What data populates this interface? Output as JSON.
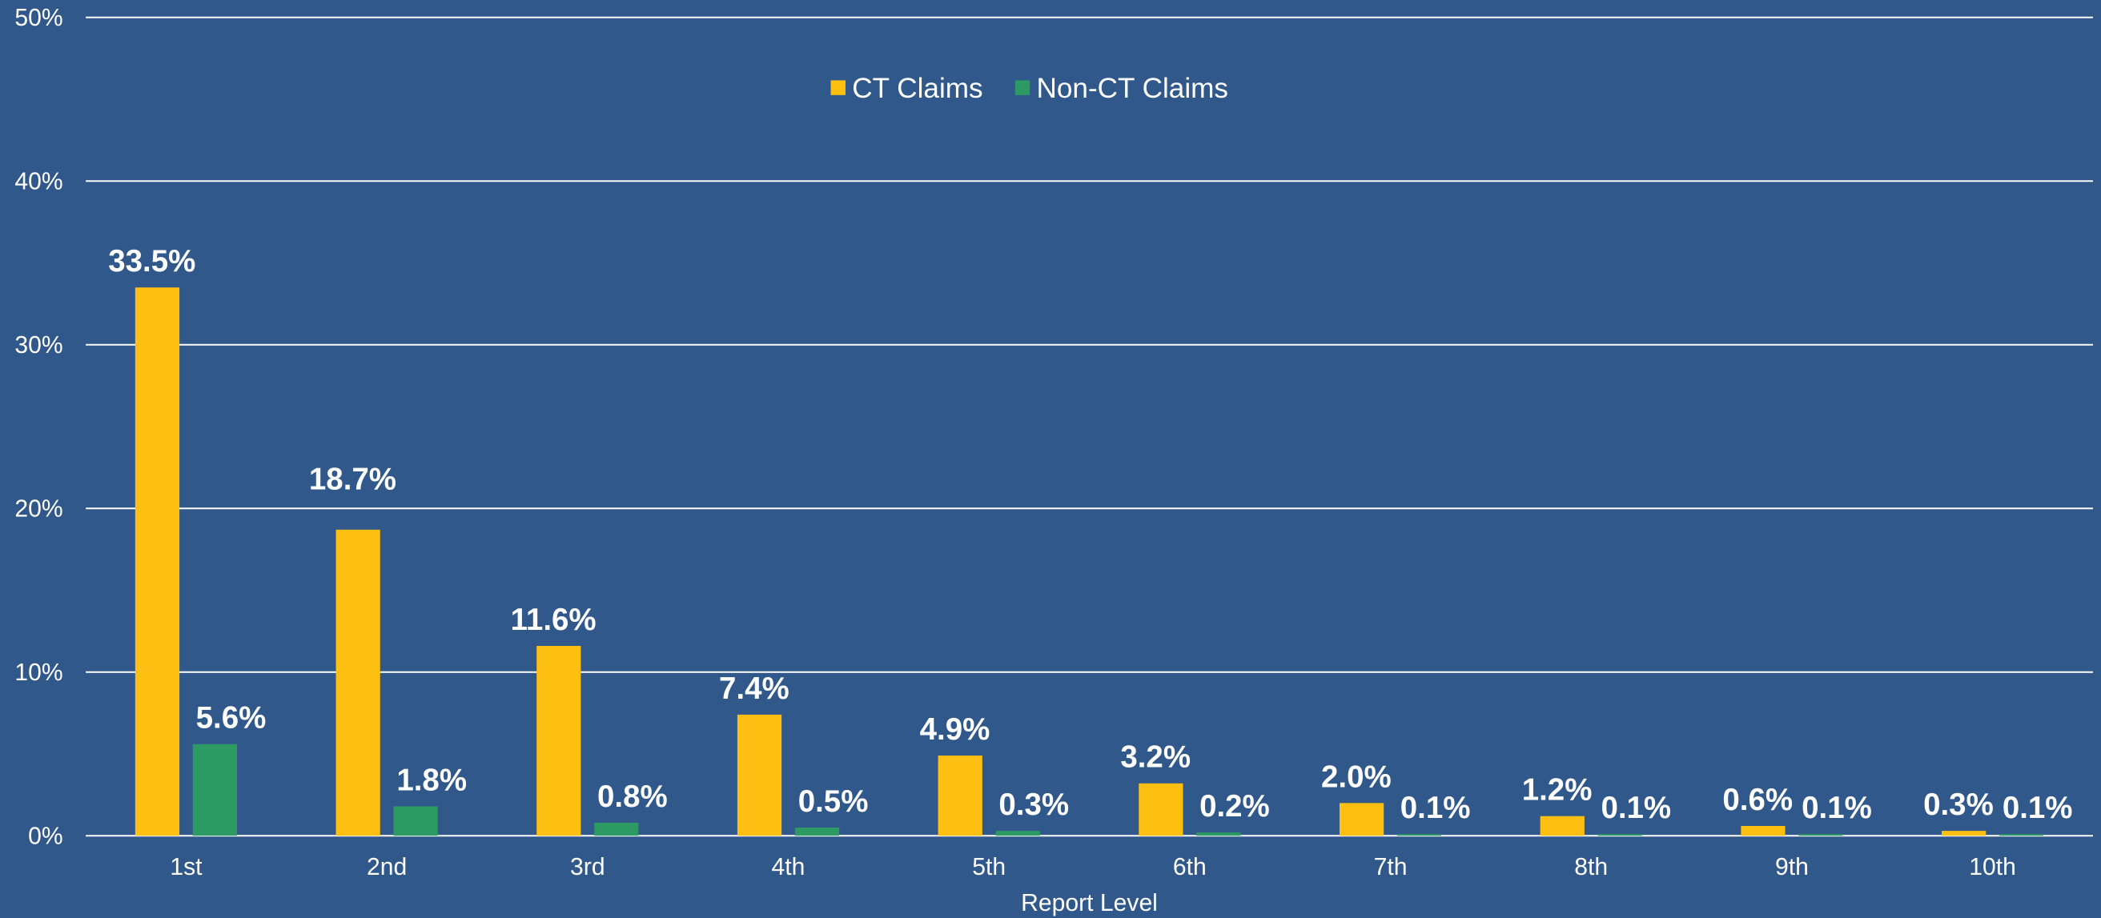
{
  "chart_data": {
    "type": "bar",
    "x_label": "Report Level",
    "categories": [
      "1st",
      "2nd",
      "3rd",
      "4th",
      "5th",
      "6th",
      "7th",
      "8th",
      "9th",
      "10th"
    ],
    "series": [
      {
        "name": "CT Claims",
        "color": "#fdbf12",
        "values": [
          33.5,
          18.7,
          11.6,
          7.4,
          4.9,
          3.2,
          2.0,
          1.2,
          0.6,
          0.3
        ],
        "value_labels": [
          "33.5%",
          "18.7%",
          "11.6%",
          "7.4%",
          "4.9%",
          "3.2%",
          "2.0%",
          "1.2%",
          "0.6%",
          "0.3%"
        ]
      },
      {
        "name": "Non-CT Claims",
        "color": "#2e9a63",
        "values": [
          5.6,
          1.8,
          0.8,
          0.5,
          0.3,
          0.2,
          0.1,
          0.1,
          0.1,
          0.1
        ],
        "value_labels": [
          "5.6%",
          "1.8%",
          "0.8%",
          "0.5%",
          "0.3%",
          "0.2%",
          "0.1%",
          "0.1%",
          "0.1%",
          "0.1%"
        ]
      }
    ],
    "ylim": [
      0,
      50
    ],
    "yticks": [
      {
        "value": 0,
        "label": "0%"
      },
      {
        "value": 10,
        "label": "10%"
      },
      {
        "value": 20,
        "label": "20%"
      },
      {
        "value": 30,
        "label": "30%"
      },
      {
        "value": 40,
        "label": "40%"
      },
      {
        "value": 50,
        "label": "50%"
      }
    ],
    "grid": true,
    "legend": "top"
  }
}
